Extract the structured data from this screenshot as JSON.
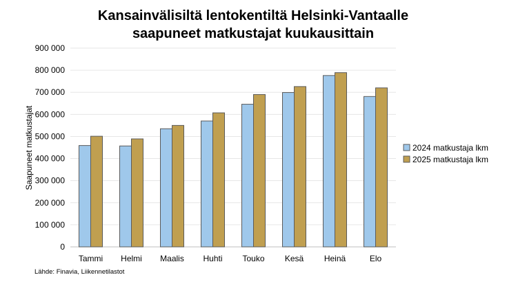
{
  "chart_data": {
    "type": "bar",
    "title_lines": [
      "Kansainvälisiltä lentokentiltä Helsinki-Vantaalle",
      "saapuneet matkustajat kuukausittain"
    ],
    "ylabel": "Saapuneet matkustajat",
    "xlabel": "",
    "ylim": [
      0,
      900000
    ],
    "yticks": [
      0,
      100000,
      200000,
      300000,
      400000,
      500000,
      600000,
      700000,
      800000,
      900000
    ],
    "ytick_labels": [
      "0",
      "100 000",
      "200 000",
      "300 000",
      "400 000",
      "500 000",
      "600 000",
      "700 000",
      "800 000",
      "900 000"
    ],
    "categories": [
      "Tammi",
      "Helmi",
      "Maalis",
      "Huhti",
      "Touko",
      "Kesä",
      "Heinä",
      "Elo"
    ],
    "series": [
      {
        "name": "2024 matkustaja lkm",
        "color": "#9fc8eb",
        "values": [
          459000,
          457000,
          535000,
          570000,
          646000,
          699000,
          776000,
          681000
        ]
      },
      {
        "name": "2025 matkustaja lkm",
        "color": "#c09f50",
        "values": [
          501000,
          489000,
          550000,
          607000,
          690000,
          726000,
          789000,
          720000
        ]
      }
    ],
    "grid": true,
    "legend_position": "right",
    "source": "Lähde: Finavia, Liikennetilastot"
  }
}
